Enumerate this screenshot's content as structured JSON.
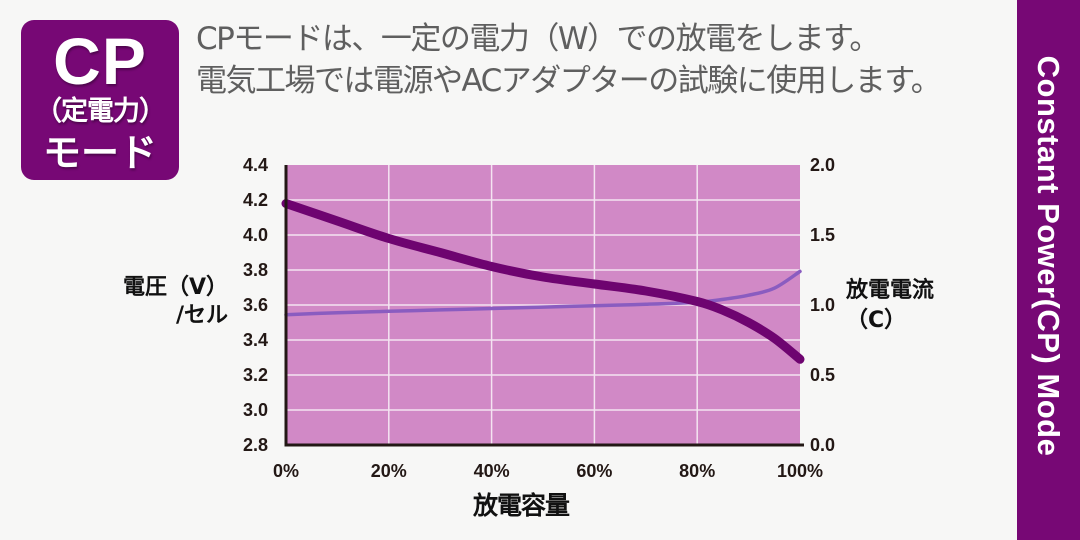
{
  "badge": {
    "title": "CP",
    "subtitle": "（定電力）",
    "mode": "モード"
  },
  "description": {
    "line1": "CPモードは、一定の電力（W）での放電をします。",
    "line2": "電気工場では電源やACアダプターの試験に使用します。"
  },
  "side_banner": {
    "text": "Constant Power(CP) Mode"
  },
  "axes": {
    "y_left_label_line1": "電圧（V）",
    "y_left_label_line2": "/セル",
    "y_right_label_line1": "放電電流",
    "y_right_label_line2": "（C）",
    "x_label": "放電容量"
  },
  "colors": {
    "brand_purple": "#770875",
    "plot_background": "#d189c6",
    "grid": "#f4e4f1",
    "voltage_line": "#6e0470",
    "current_line": "#8a5cc0",
    "axis": "#231815"
  },
  "chart_data": {
    "type": "line",
    "title": "Constant Power(CP) Mode",
    "xlabel": "放電容量",
    "ylabel": "電圧（V）/セル",
    "y2label": "放電電流（C）",
    "x": [
      0,
      10,
      20,
      30,
      40,
      50,
      60,
      70,
      80,
      85,
      90,
      95,
      100
    ],
    "x_tick_labels": [
      "0%",
      "20%",
      "40%",
      "60%",
      "80%",
      "100%"
    ],
    "x_ticks": [
      0,
      20,
      40,
      60,
      80,
      100
    ],
    "xlim": [
      0,
      100
    ],
    "y_tick_labels": [
      "4.4",
      "4.2",
      "4.0",
      "3.8",
      "3.6",
      "3.4",
      "3.2",
      "3.0",
      "2.8"
    ],
    "ylim": [
      2.8,
      4.4
    ],
    "y2_tick_labels": [
      "2.0",
      "1.5",
      "1.0",
      "0.5",
      "0.0"
    ],
    "y2lim": [
      0.0,
      2.0
    ],
    "grid": true,
    "legend": "none",
    "series": [
      {
        "name": "電圧（V）/セル",
        "axis": "left",
        "values": [
          4.18,
          4.08,
          3.98,
          3.9,
          3.82,
          3.76,
          3.72,
          3.68,
          3.62,
          3.57,
          3.5,
          3.41,
          3.29
        ]
      },
      {
        "name": "放電電流（C）",
        "axis": "right",
        "values": [
          0.93,
          0.945,
          0.955,
          0.965,
          0.975,
          0.985,
          0.995,
          1.005,
          1.02,
          1.04,
          1.07,
          1.12,
          1.24
        ]
      }
    ]
  }
}
